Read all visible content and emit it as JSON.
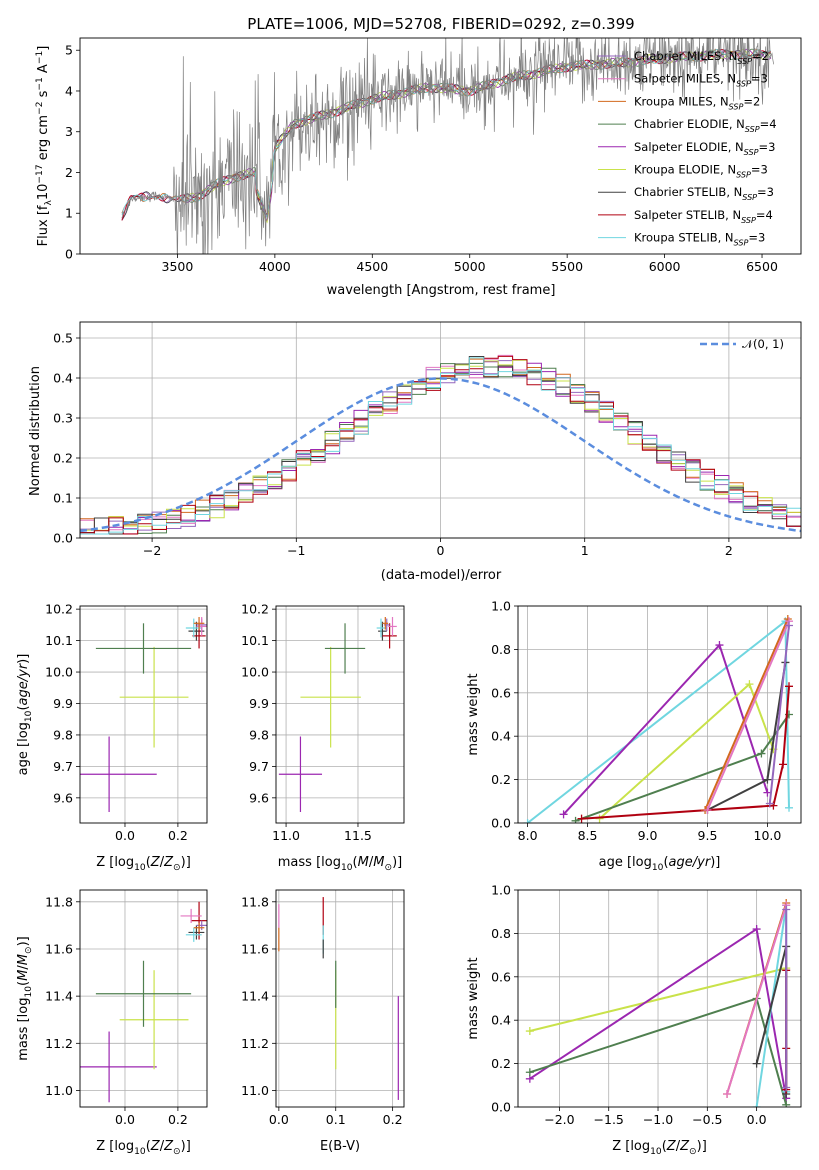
{
  "colors": {
    "Chabrier MILES": "#9467bd",
    "Salpeter MILES": "#e377c2",
    "Kroupa MILES": "#d2691e",
    "Chabrier ELODIE": "#4f7f4f",
    "Salpeter ELODIE": "#9b27b0",
    "Kroupa ELODIE": "#c9e24a",
    "Chabrier STELIB": "#404040",
    "Salpeter STELIB": "#b00010",
    "Kroupa STELIB": "#70d6e0",
    "gauss": "#5b8dde",
    "data": "#7f7f7f"
  },
  "chart_data": [
    {
      "id": "spectrum",
      "type": "line",
      "title": "PLATE=1006, MJD=52708, FIBERID=0292, z=0.399",
      "xlabel": "wavelength [Angstrom, rest frame]",
      "ylabel": "Flux [f_λ 10^-17 erg cm^-2 s^-1 A^-1]",
      "xlim": [
        3000,
        6700
      ],
      "ylim": [
        0,
        5.3
      ],
      "xticks": [
        3500,
        4000,
        4500,
        5000,
        5500,
        6000,
        6500
      ],
      "yticks": [
        0,
        1,
        2,
        3,
        4,
        5
      ],
      "legend_position": "upper right",
      "series": [
        {
          "name": "Chabrier MILES, N_SSP=2"
        },
        {
          "name": "Salpeter MILES, N_SSP=3"
        },
        {
          "name": "Kroupa MILES, N_SSP=2"
        },
        {
          "name": "Chabrier ELODIE, N_SSP=4"
        },
        {
          "name": "Salpeter ELODIE, N_SSP=3"
        },
        {
          "name": "Kroupa ELODIE, N_SSP=3"
        },
        {
          "name": "Chabrier STELIB, N_SSP=3"
        },
        {
          "name": "Salpeter STELIB, N_SSP=4"
        },
        {
          "name": "Kroupa STELIB, N_SSP=3"
        }
      ],
      "data_spectrum_anchors": {
        "x": [
          3215,
          3260,
          3400,
          3500,
          3600,
          3700,
          3800,
          3900,
          3960,
          4000,
          4100,
          4250,
          4500,
          4800,
          5000,
          5200,
          5500,
          5800,
          6000,
          6300,
          6550
        ],
        "y": [
          0.9,
          1.35,
          1.45,
          1.3,
          1.4,
          1.7,
          1.9,
          2.0,
          1.1,
          2.6,
          3.2,
          3.4,
          3.8,
          4.1,
          4.0,
          4.3,
          4.6,
          4.7,
          4.8,
          4.9,
          4.9
        ]
      }
    },
    {
      "id": "residuals",
      "type": "histogram",
      "xlabel": "(data-model)/error",
      "ylabel": "Normed distribution",
      "xlim": [
        -2.5,
        2.5
      ],
      "ylim": [
        0,
        0.54
      ],
      "xticks": [
        -2,
        -1,
        0,
        1,
        2
      ],
      "yticks": [
        0.0,
        0.1,
        0.2,
        0.3,
        0.4,
        0.5
      ],
      "grid": true,
      "legend_position": "upper right",
      "legend_label": "N(0, 1)",
      "bin_width": 0.1
    },
    {
      "id": "age_vs_Z",
      "type": "scatter",
      "xlabel": "Z [log10(Z/Z⊙)]",
      "ylabel": "age [log10(age/yr)]",
      "xlim": [
        -0.17,
        0.31
      ],
      "ylim": [
        9.52,
        10.21
      ],
      "xticks": [
        0.0,
        0.2
      ],
      "yticks": [
        9.6,
        9.7,
        9.8,
        9.9,
        10.0,
        10.1,
        10.2
      ],
      "grid": true,
      "points": [
        {
          "model": "Salpeter ELODIE",
          "x": -0.06,
          "y": 9.675,
          "xerr": 0.18,
          "yerr": 0.12
        },
        {
          "model": "Kroupa ELODIE",
          "x": 0.11,
          "y": 9.92,
          "xerr": 0.13,
          "yerr": 0.16
        },
        {
          "model": "Chabrier ELODIE",
          "x": 0.07,
          "y": 10.075,
          "xerr": 0.18,
          "yerr": 0.08
        },
        {
          "model": "Chabrier STELIB",
          "x": 0.27,
          "y": 10.13,
          "xerr": 0.03,
          "yerr": 0.03
        },
        {
          "model": "Salpeter STELIB",
          "x": 0.28,
          "y": 10.115,
          "xerr": 0.025,
          "yerr": 0.04
        },
        {
          "model": "Kroupa STELIB",
          "x": 0.26,
          "y": 10.14,
          "xerr": 0.03,
          "yerr": 0.03
        },
        {
          "model": "Chabrier MILES",
          "x": 0.29,
          "y": 10.15,
          "xerr": 0.02,
          "yerr": 0.02
        },
        {
          "model": "Salpeter MILES",
          "x": 0.29,
          "y": 10.145,
          "xerr": 0.02,
          "yerr": 0.03
        },
        {
          "model": "Kroupa MILES",
          "x": 0.28,
          "y": 10.155,
          "xerr": 0.02,
          "yerr": 0.02
        }
      ]
    },
    {
      "id": "age_vs_mass",
      "type": "scatter",
      "xlabel": "mass [log10(M/M⊙)]",
      "ylabel": "",
      "xlim": [
        10.93,
        11.82
      ],
      "ylim": [
        9.52,
        10.21
      ],
      "xticks": [
        11.0,
        11.5
      ],
      "yticks": [
        9.6,
        9.7,
        9.8,
        9.9,
        10.0,
        10.1,
        10.2
      ],
      "grid": true,
      "points": [
        {
          "model": "Salpeter ELODIE",
          "x": 11.1,
          "y": 9.675,
          "xerr": 0.15,
          "yerr": 0.12
        },
        {
          "model": "Kroupa ELODIE",
          "x": 11.31,
          "y": 9.92,
          "xerr": 0.21,
          "yerr": 0.16
        },
        {
          "model": "Chabrier ELODIE",
          "x": 11.41,
          "y": 10.075,
          "xerr": 0.14,
          "yerr": 0.08
        },
        {
          "model": "Chabrier STELIB",
          "x": 11.67,
          "y": 10.13,
          "xerr": 0.03,
          "yerr": 0.03
        },
        {
          "model": "Salpeter STELIB",
          "x": 11.72,
          "y": 10.115,
          "xerr": 0.05,
          "yerr": 0.04
        },
        {
          "model": "Kroupa STELIB",
          "x": 11.66,
          "y": 10.14,
          "xerr": 0.03,
          "yerr": 0.03
        },
        {
          "model": "Chabrier MILES",
          "x": 11.7,
          "y": 10.15,
          "xerr": 0.02,
          "yerr": 0.02
        },
        {
          "model": "Salpeter MILES",
          "x": 11.74,
          "y": 10.145,
          "xerr": 0.03,
          "yerr": 0.03
        },
        {
          "model": "Kroupa MILES",
          "x": 11.69,
          "y": 10.155,
          "xerr": 0.02,
          "yerr": 0.02
        }
      ]
    },
    {
      "id": "weight_vs_age",
      "type": "line",
      "xlabel": "age [log10(age/yr)]",
      "ylabel": "mass weight",
      "xlim": [
        7.92,
        10.28
      ],
      "ylim": [
        0,
        1
      ],
      "xticks": [
        8.0,
        8.5,
        9.0,
        9.5,
        10.0
      ],
      "yticks": [
        0.0,
        0.2,
        0.4,
        0.6,
        0.8,
        1.0
      ],
      "grid": true,
      "series": [
        {
          "model": "Kroupa STELIB",
          "x": [
            8.0,
            10.15,
            10.18
          ],
          "y": [
            0.0,
            0.93,
            0.07
          ]
        },
        {
          "model": "Salpeter ELODIE",
          "x": [
            8.3,
            9.6,
            10.0
          ],
          "y": [
            0.04,
            0.82,
            0.14
          ]
        },
        {
          "model": "Kroupa ELODIE",
          "x": [
            8.6,
            9.85,
            10.05
          ],
          "y": [
            0.02,
            0.64,
            0.34
          ]
        },
        {
          "model": "Chabrier ELODIE",
          "x": [
            8.4,
            9.95,
            10.18
          ],
          "y": [
            0.01,
            0.32,
            0.5
          ]
        },
        {
          "model": "Chabrier STELIB",
          "x": [
            9.5,
            10.0,
            10.15
          ],
          "y": [
            0.06,
            0.2,
            0.74
          ]
        },
        {
          "model": "Salpeter STELIB",
          "x": [
            8.45,
            10.05,
            10.13,
            10.18
          ],
          "y": [
            0.02,
            0.08,
            0.27,
            0.63
          ]
        },
        {
          "model": "Kroupa MILES",
          "x": [
            9.48,
            10.17
          ],
          "y": [
            0.06,
            0.94
          ]
        },
        {
          "model": "Salpeter MILES",
          "x": [
            9.5,
            10.18
          ],
          "y": [
            0.06,
            0.93
          ]
        },
        {
          "model": "Chabrier MILES",
          "x": [
            10.02,
            10.18
          ],
          "y": [
            0.09,
            0.91
          ]
        }
      ]
    },
    {
      "id": "mass_vs_Z",
      "type": "scatter",
      "xlabel": "Z [log10(Z/Z⊙)]",
      "ylabel": "mass [log10(M/M⊙)]",
      "xlim": [
        -0.17,
        0.31
      ],
      "ylim": [
        10.93,
        11.85
      ],
      "xticks": [
        0.0,
        0.2
      ],
      "yticks": [
        11.0,
        11.2,
        11.4,
        11.6,
        11.8
      ],
      "grid": true,
      "points": [
        {
          "model": "Salpeter ELODIE",
          "x": -0.06,
          "y": 11.1,
          "xerr": 0.18,
          "yerr": 0.15
        },
        {
          "model": "Kroupa ELODIE",
          "x": 0.11,
          "y": 11.3,
          "xerr": 0.13,
          "yerr": 0.21
        },
        {
          "model": "Chabrier ELODIE",
          "x": 0.07,
          "y": 11.41,
          "xerr": 0.18,
          "yerr": 0.14
        },
        {
          "model": "Chabrier STELIB",
          "x": 0.27,
          "y": 11.67,
          "xerr": 0.03,
          "yerr": 0.03
        },
        {
          "model": "Salpeter STELIB",
          "x": 0.28,
          "y": 11.72,
          "xerr": 0.03,
          "yerr": 0.08
        },
        {
          "model": "Kroupa STELIB",
          "x": 0.26,
          "y": 11.66,
          "xerr": 0.03,
          "yerr": 0.03
        },
        {
          "model": "Chabrier MILES",
          "x": 0.29,
          "y": 11.7,
          "xerr": 0.02,
          "yerr": 0.02
        },
        {
          "model": "Salpeter MILES",
          "x": 0.25,
          "y": 11.74,
          "xerr": 0.04,
          "yerr": 0.03
        },
        {
          "model": "Kroupa MILES",
          "x": 0.28,
          "y": 11.69,
          "xerr": 0.02,
          "yerr": 0.02
        }
      ]
    },
    {
      "id": "mass_vs_ebv",
      "type": "scatter",
      "xlabel": "E(B-V)",
      "ylabel": "",
      "xlim": [
        -0.005,
        0.22
      ],
      "ylim": [
        10.93,
        11.85
      ],
      "xticks": [
        0.0,
        0.1,
        0.2
      ],
      "yticks": [
        11.0,
        11.2,
        11.4,
        11.6,
        11.8
      ],
      "grid": true,
      "points": [
        {
          "model": "Salpeter ELODIE",
          "x": 0.21,
          "y": 11.18,
          "yerr": 0.22
        },
        {
          "model": "Kroupa ELODIE",
          "x": 0.1,
          "y": 11.3,
          "yerr": 0.21
        },
        {
          "model": "Chabrier ELODIE",
          "x": 0.1,
          "y": 11.45,
          "yerr": 0.1
        },
        {
          "model": "Salpeter STELIB",
          "x": 0.078,
          "y": 11.74,
          "yerr": 0.08
        },
        {
          "model": "Kroupa STELIB",
          "x": 0.078,
          "y": 11.64,
          "yerr": 0.06
        },
        {
          "model": "Chabrier STELIB",
          "x": 0.078,
          "y": 11.6,
          "yerr": 0.04
        },
        {
          "model": "Salpeter MILES",
          "x": 0.0,
          "y": 11.74,
          "yerr": 0.05
        },
        {
          "model": "Kroupa MILES",
          "x": 0.0,
          "y": 11.64,
          "yerr": 0.05
        }
      ]
    },
    {
      "id": "weight_vs_Z",
      "type": "line",
      "xlabel": "Z [log10(Z/Z⊙)]",
      "ylabel": "mass weight",
      "xlim": [
        -2.42,
        0.45
      ],
      "ylim": [
        0,
        1
      ],
      "xticks": [
        -2.0,
        -1.5,
        -1.0,
        -0.5,
        0.0
      ],
      "yticks": [
        0.0,
        0.2,
        0.4,
        0.6,
        0.8,
        1.0
      ],
      "grid": true,
      "series": [
        {
          "model": "Kroupa ELODIE",
          "x": [
            -2.3,
            0.3
          ],
          "y": [
            0.35,
            0.64
          ]
        },
        {
          "model": "Salpeter ELODIE",
          "x": [
            -2.3,
            0.0,
            0.3
          ],
          "y": [
            0.13,
            0.82,
            0.04
          ]
        },
        {
          "model": "Chabrier ELODIE",
          "x": [
            -2.3,
            0.0,
            0.3
          ],
          "y": [
            0.16,
            0.5,
            0.01
          ]
        },
        {
          "model": "Kroupa STELIB",
          "x": [
            0.0,
            0.3,
            0.3
          ],
          "y": [
            0.0,
            0.93,
            0.07
          ]
        },
        {
          "model": "Chabrier STELIB",
          "x": [
            0.0,
            0.3,
            0.3
          ],
          "y": [
            0.2,
            0.74,
            0.06
          ]
        },
        {
          "model": "Salpeter STELIB",
          "x": [
            0.3,
            0.3,
            0.3
          ],
          "y": [
            0.08,
            0.27,
            0.63
          ]
        },
        {
          "model": "Kroupa MILES",
          "x": [
            -0.3,
            0.3
          ],
          "y": [
            0.06,
            0.94
          ]
        },
        {
          "model": "Salpeter MILES",
          "x": [
            -0.3,
            0.3
          ],
          "y": [
            0.06,
            0.93
          ]
        },
        {
          "model": "Chabrier MILES",
          "x": [
            0.3,
            0.3
          ],
          "y": [
            0.09,
            0.91
          ]
        }
      ]
    }
  ]
}
